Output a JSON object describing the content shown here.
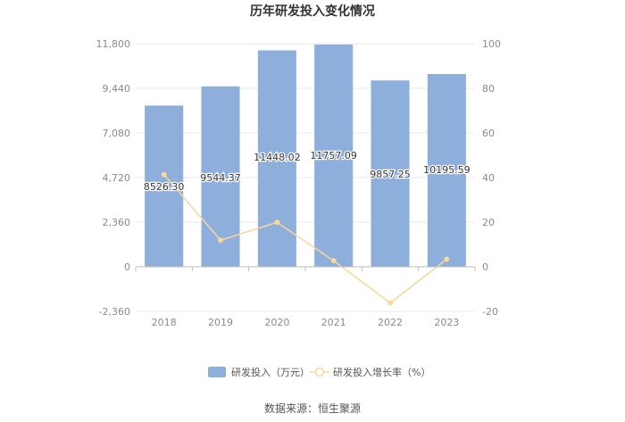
{
  "chart_data": {
    "type": "bar",
    "title": "历年研发投入变化情况",
    "categories": [
      "2018",
      "2019",
      "2020",
      "2021",
      "2022",
      "2023"
    ],
    "series": [
      {
        "name": "研发投入（万元）",
        "type": "bar",
        "axis": "left",
        "values": [
          8526.3,
          9544.37,
          11448.02,
          11757.09,
          9857.25,
          10195.59
        ],
        "labels": [
          "8526.30",
          "9544.37",
          "11448.02",
          "11757.09",
          "9857.25",
          "10195.59"
        ]
      },
      {
        "name": "研发投入增长率（%）",
        "type": "line",
        "axis": "right",
        "values": [
          41.3,
          11.9,
          19.9,
          2.7,
          -16.2,
          3.4
        ]
      }
    ],
    "y_left": {
      "ylim": [
        -2360,
        11800
      ],
      "ticks": [
        "11,800",
        "9,440",
        "7,080",
        "4,720",
        "2,360",
        "0",
        "-2,360"
      ],
      "tick_values": [
        11800,
        9440,
        7080,
        4720,
        2360,
        0,
        -2360
      ]
    },
    "y_right": {
      "ylim": [
        -20,
        100
      ],
      "ticks": [
        "100",
        "80",
        "60",
        "40",
        "20",
        "0",
        "-20"
      ],
      "tick_values": [
        100,
        80,
        60,
        40,
        20,
        0,
        -20
      ]
    },
    "grid": true,
    "legend_position": "bottom",
    "colors": {
      "bar": "#8eaedb",
      "line": "#f8d89a",
      "grid": "#e8e8e8",
      "axis": "#bbbbbb"
    }
  },
  "source": "数据来源：恒生聚源"
}
